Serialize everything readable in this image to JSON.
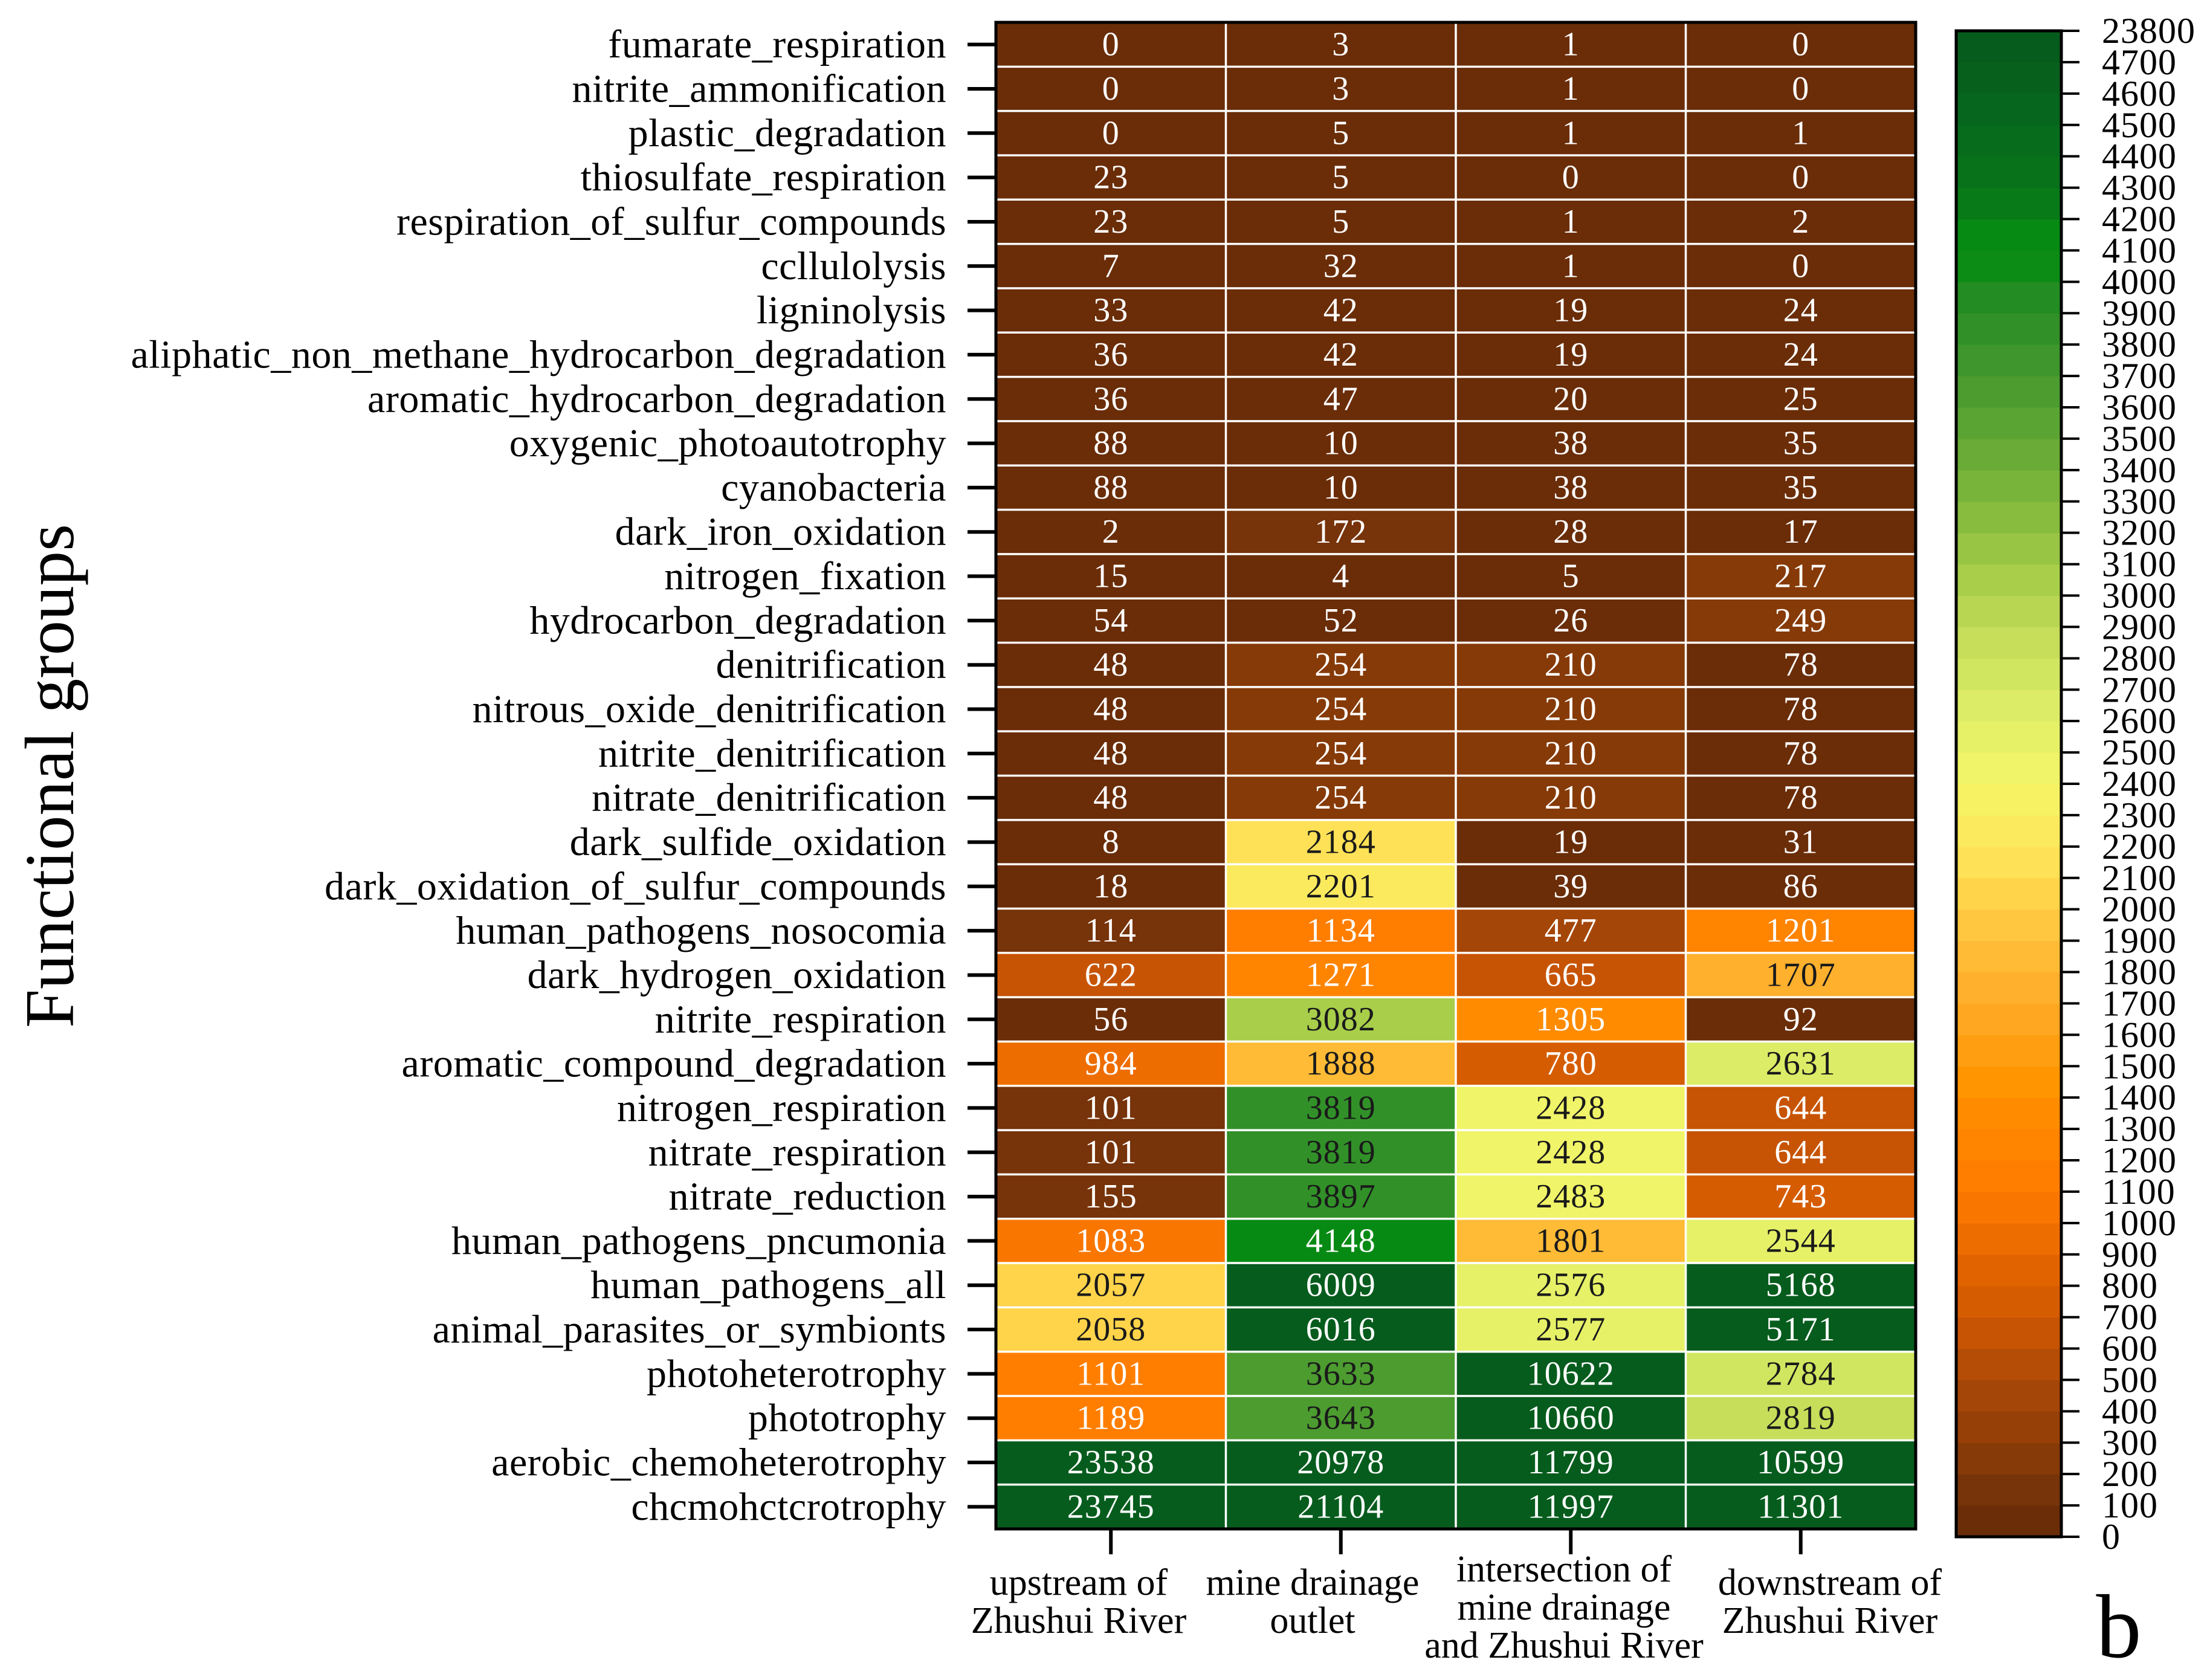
{
  "chart_data": {
    "type": "heatmap",
    "ylabel": "Functional groups",
    "panel_label": "b",
    "columns": [
      [
        "upstream of",
        "Zhushui River"
      ],
      [
        "mine drainage",
        "outlet"
      ],
      [
        "intersection of",
        "mine drainage",
        "and Zhushui River"
      ],
      [
        "downstream of",
        "Zhushui River"
      ]
    ],
    "rows": [
      "fumarate_respiration",
      "nitrite_ammonification",
      "plastic_degradation",
      "thiosulfate_respiration",
      "respiration_of_sulfur_compounds",
      "ccllulolysis",
      "ligninolysis",
      "aliphatic_non_methane_hydrocarbon_degradation",
      "aromatic_hydrocarbon_degradation",
      "oxygenic_photoautotrophy",
      "cyanobacteria",
      "dark_iron_oxidation",
      "nitrogen_fixation",
      "hydrocarbon_degradation",
      "denitrification",
      "nitrous_oxide_denitrification",
      "nitrite_denitrification",
      "nitrate_denitrification",
      "dark_sulfide_oxidation",
      "dark_oxidation_of_sulfur_compounds",
      "human_pathogens_nosocomia",
      "dark_hydrogen_oxidation",
      "nitrite_respiration",
      "aromatic_compound_degradation",
      "nitrogen_respiration",
      "nitrate_respiration",
      "nitrate_reduction",
      "human_pathogens_pncumonia",
      "human_pathogens_all",
      "animal_parasites_or_symbionts",
      "photoheterotrophy",
      "phototrophy",
      "aerobic_chemoheterotrophy",
      "chcmohctcrotrophy"
    ],
    "values": [
      [
        0,
        3,
        1,
        0
      ],
      [
        0,
        3,
        1,
        0
      ],
      [
        0,
        5,
        1,
        1
      ],
      [
        23,
        5,
        0,
        0
      ],
      [
        23,
        5,
        1,
        2
      ],
      [
        7,
        32,
        1,
        0
      ],
      [
        33,
        42,
        19,
        24
      ],
      [
        36,
        42,
        19,
        24
      ],
      [
        36,
        47,
        20,
        25
      ],
      [
        88,
        10,
        38,
        35
      ],
      [
        88,
        10,
        38,
        35
      ],
      [
        2,
        172,
        28,
        17
      ],
      [
        15,
        4,
        5,
        217
      ],
      [
        54,
        52,
        26,
        249
      ],
      [
        48,
        254,
        210,
        78
      ],
      [
        48,
        254,
        210,
        78
      ],
      [
        48,
        254,
        210,
        78
      ],
      [
        48,
        254,
        210,
        78
      ],
      [
        8,
        2184,
        19,
        31
      ],
      [
        18,
        2201,
        39,
        86
      ],
      [
        114,
        1134,
        477,
        1201
      ],
      [
        622,
        1271,
        665,
        1707
      ],
      [
        56,
        3082,
        1305,
        92
      ],
      [
        984,
        1888,
        780,
        2631
      ],
      [
        101,
        3819,
        2428,
        644
      ],
      [
        101,
        3819,
        2428,
        644
      ],
      [
        155,
        3897,
        2483,
        743
      ],
      [
        1083,
        4148,
        1801,
        2544
      ],
      [
        2057,
        6009,
        2576,
        5168
      ],
      [
        2058,
        6016,
        2577,
        5171
      ],
      [
        1101,
        3633,
        10622,
        2784
      ],
      [
        1189,
        3643,
        10660,
        2819
      ],
      [
        23538,
        20978,
        11799,
        10599
      ],
      [
        23745,
        21104,
        11997,
        11301
      ]
    ],
    "colorbar": {
      "ticks": [
        0,
        100,
        200,
        300,
        400,
        500,
        600,
        700,
        800,
        900,
        1000,
        1100,
        1200,
        1300,
        1400,
        1500,
        1600,
        1700,
        1800,
        1900,
        2000,
        2100,
        2200,
        2300,
        2400,
        2500,
        2600,
        2700,
        2800,
        2900,
        3000,
        3100,
        3200,
        3300,
        3400,
        3500,
        3600,
        3700,
        3800,
        3900,
        4000,
        4100,
        4200,
        4300,
        4400,
        4500,
        4600,
        4700,
        23800
      ],
      "band_colors": [
        "#6a2d08",
        "#773309",
        "#863a07",
        "#963f07",
        "#a44608",
        "#b54d06",
        "#c75404",
        "#d65c02",
        "#e16300",
        "#ee6d00",
        "#f97600",
        "#ff7e00",
        "#ff8400",
        "#ff8c00",
        "#ff9500",
        "#ff9e10",
        "#ffa720",
        "#ffb02d",
        "#ffbb36",
        "#ffc640",
        "#ffd44a",
        "#fee156",
        "#fbea5e",
        "#f6f264",
        "#f0f468",
        "#e6f168",
        "#dcec66",
        "#d1e660",
        "#c6de5a",
        "#b8d652",
        "#a8ce4a",
        "#98c544",
        "#88bc3e",
        "#78b33a",
        "#69ab36",
        "#5aa434",
        "#4c9c30",
        "#3e962c",
        "#319128",
        "#238c22",
        "#0c8c14",
        "#078a14",
        "#097a18",
        "#08721a",
        "#076c1c",
        "#07661d",
        "#07611d",
        "#065c1d"
      ]
    },
    "colors": {
      "grid_line": "#ffffff",
      "border": "#000000",
      "text": "#000000",
      "cell_text_light": "#ffffff",
      "cell_text_dark": "#1a1a1a"
    }
  }
}
